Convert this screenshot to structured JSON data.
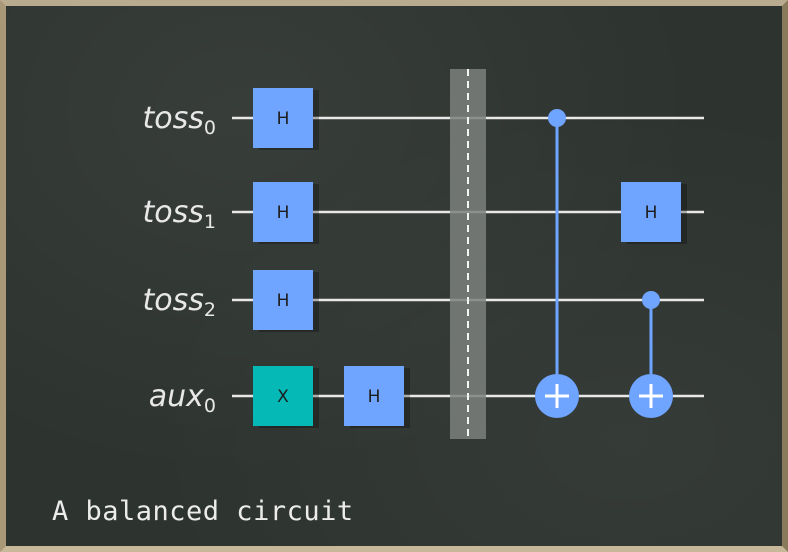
{
  "qubits": [
    {
      "name": "toss",
      "index": "0"
    },
    {
      "name": "toss",
      "index": "1"
    },
    {
      "name": "toss",
      "index": "2"
    },
    {
      "name": "aux",
      "index": "0"
    }
  ],
  "gates": [
    {
      "type": "H",
      "label": "H",
      "qubit": 0,
      "column": 0
    },
    {
      "type": "H",
      "label": "H",
      "qubit": 1,
      "column": 0
    },
    {
      "type": "H",
      "label": "H",
      "qubit": 2,
      "column": 0
    },
    {
      "type": "X",
      "label": "X",
      "qubit": 3,
      "column": 0
    },
    {
      "type": "H",
      "label": "H",
      "qubit": 3,
      "column": 1
    },
    {
      "type": "barrier",
      "column": 2
    },
    {
      "type": "CX",
      "control": 0,
      "target": 3,
      "column": 3
    },
    {
      "type": "H",
      "label": "H",
      "qubit": 1,
      "column": 4
    },
    {
      "type": "CX",
      "control": 2,
      "target": 3,
      "column": 4
    }
  ],
  "colors": {
    "h_gate": "#6fa4ff",
    "x_gate": "#05bab6",
    "cx_gate": "#6fa4ff",
    "barrier": "#7b807c",
    "wire": "#e8e8e8",
    "board": "#2d332f"
  },
  "caption": "A balanced circuit"
}
